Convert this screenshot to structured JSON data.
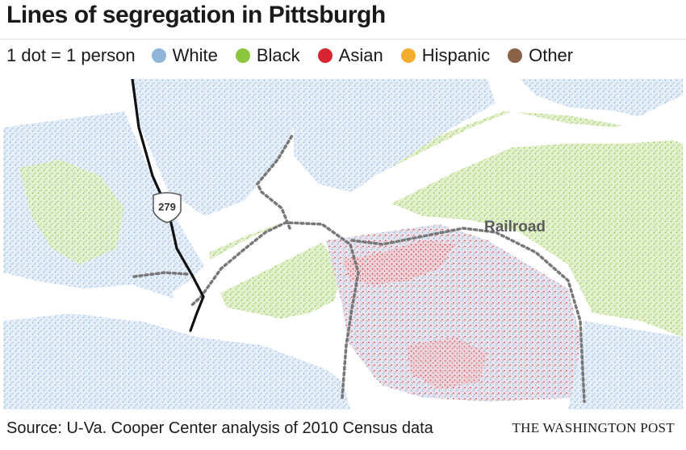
{
  "title": "Lines of segregation in Pittsburgh",
  "legend": {
    "scale": "1 dot = 1 person",
    "items": [
      {
        "label": "White",
        "color": "#8fb3d9"
      },
      {
        "label": "Black",
        "color": "#8cc63f"
      },
      {
        "label": "Asian",
        "color": "#d7262f"
      },
      {
        "label": "Hispanic",
        "color": "#f2ad2e"
      },
      {
        "label": "Other",
        "color": "#8a6248"
      }
    ]
  },
  "map": {
    "highway_shield": "279",
    "railroad_label": "Railroad"
  },
  "footer": {
    "source": "Source: U-Va. Cooper Center analysis of 2010 Census data",
    "credit": "THE WASHINGTON POST"
  }
}
